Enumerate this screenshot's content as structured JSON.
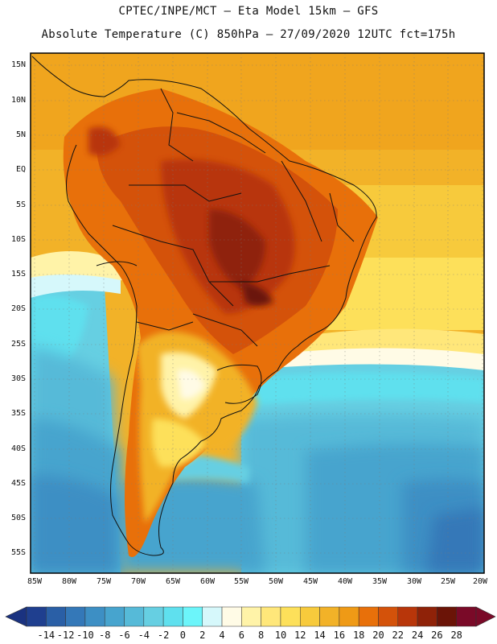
{
  "header": {
    "line1": "CPTEC/INPE/MCT –  Eta Model 15km – GFS",
    "line2": "Absolute Temperature (C) 850hPa – 27/09/2020 12UTC fct=175h"
  },
  "axes": {
    "lat_labels": [
      "15N",
      "10N",
      "5N",
      "EQ",
      "5S",
      "10S",
      "15S",
      "20S",
      "25S",
      "30S",
      "35S",
      "40S",
      "45S",
      "50S",
      "55S"
    ],
    "lon_labels": [
      "85W",
      "80W",
      "75W",
      "70W",
      "65W",
      "60W",
      "55W",
      "50W",
      "45W",
      "40W",
      "35W",
      "30W",
      "25W",
      "20W"
    ]
  },
  "colorbar": {
    "labels": [
      "-14",
      "-12",
      "-10",
      "-8",
      "-6",
      "-4",
      "-2",
      "0",
      "2",
      "4",
      "6",
      "8",
      "10",
      "12",
      "14",
      "16",
      "18",
      "20",
      "22",
      "24",
      "26",
      "28"
    ],
    "colors": [
      "#1f3f8f",
      "#2a5fa6",
      "#3478b8",
      "#3d8fc4",
      "#47a4ce",
      "#56bad8",
      "#66cfe2",
      "#5fe0ee",
      "#6cf5fa",
      "#d6f8fb",
      "#fffbe6",
      "#fff3a8",
      "#ffe77a",
      "#fde05a",
      "#f7ca3c",
      "#f2b228",
      "#ef9a16",
      "#e8700a",
      "#d4520a",
      "#b8360a",
      "#8f2208",
      "#6b1407",
      "#7a0a28"
    ],
    "under_color": "#1a3280",
    "over_color": "#7a0a28"
  }
}
